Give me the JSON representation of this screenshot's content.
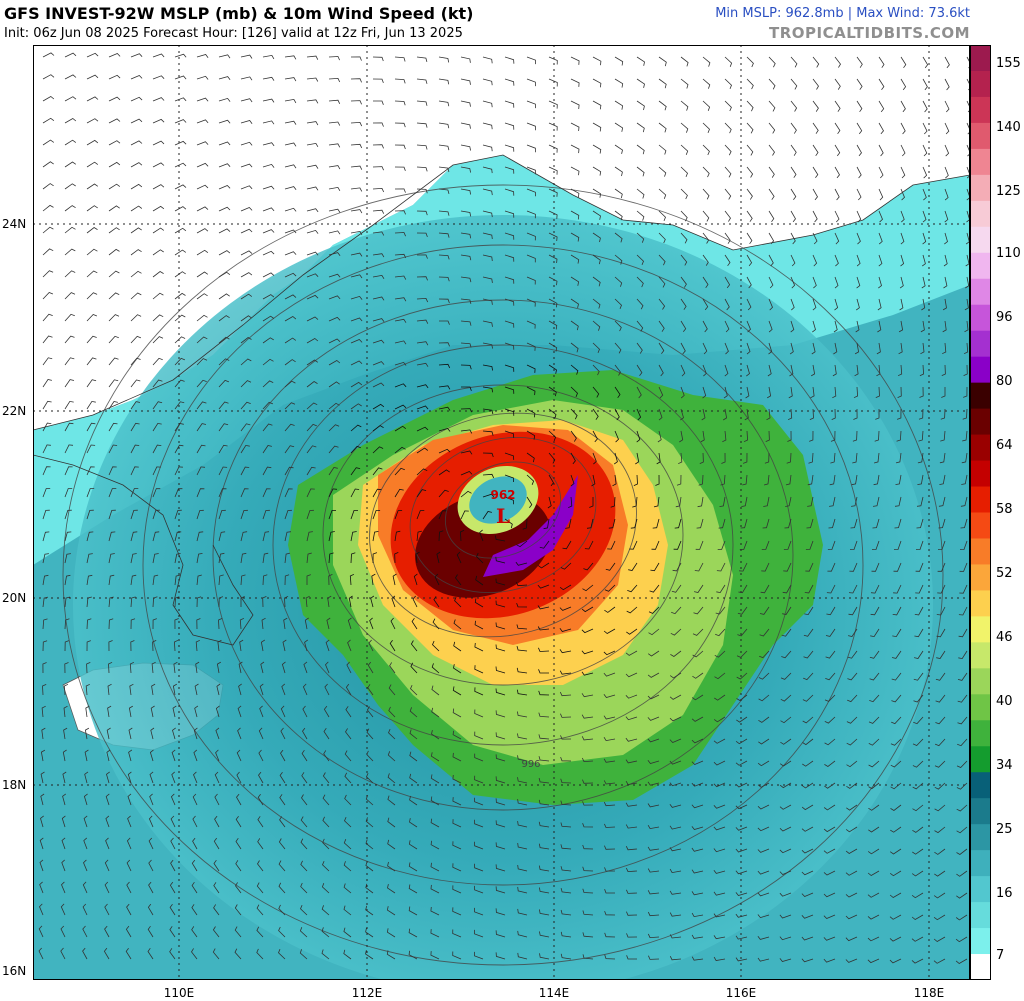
{
  "header": {
    "title": "GFS INVEST-92W MSLP (mb) & 10m Wind Speed (kt)",
    "subtitle": "Init: 06z Jun 08 2025   Forecast Hour: [126]   valid at 12z Fri, Jun 13 2025",
    "stats": "Min MSLP: 962.8mb | Max Wind: 73.6kt",
    "credit": "TROPICALTIDBITS.COM"
  },
  "map": {
    "lat_labels": [
      "24N",
      "22N",
      "20N",
      "18N",
      "16N"
    ],
    "lon_labels": [
      "110E",
      "112E",
      "114E",
      "116E",
      "118E"
    ],
    "low_label": "962",
    "low_symbol": "L",
    "isobar_label": "996"
  },
  "colorbar": {
    "labels": [
      "155",
      "140",
      "125",
      "110",
      "96",
      "80",
      "64",
      "58",
      "52",
      "46",
      "40",
      "34",
      "25",
      "16",
      "7"
    ],
    "colors": [
      "#9c1a4e",
      "#b4224e",
      "#cc3556",
      "#e05a6e",
      "#ef8592",
      "#f4adb6",
      "#f7cbd6",
      "#f6d9ef",
      "#f0b6ef",
      "#df87e6",
      "#c655da",
      "#a430d0",
      "#8a00c8",
      "#3a0000",
      "#6a0000",
      "#9a0000",
      "#c40000",
      "#e61e00",
      "#f54a14",
      "#f87c28",
      "#fba63a",
      "#fdd04e",
      "#f1f36a",
      "#c7e86a",
      "#9bd65a",
      "#6fc546",
      "#3fb23c",
      "#149c2e",
      "#086078",
      "#1b7b8c",
      "#2c96a4",
      "#3eb0bc",
      "#52c7cf",
      "#66dcdc",
      "#7cf0ec",
      "#ffffff"
    ]
  }
}
